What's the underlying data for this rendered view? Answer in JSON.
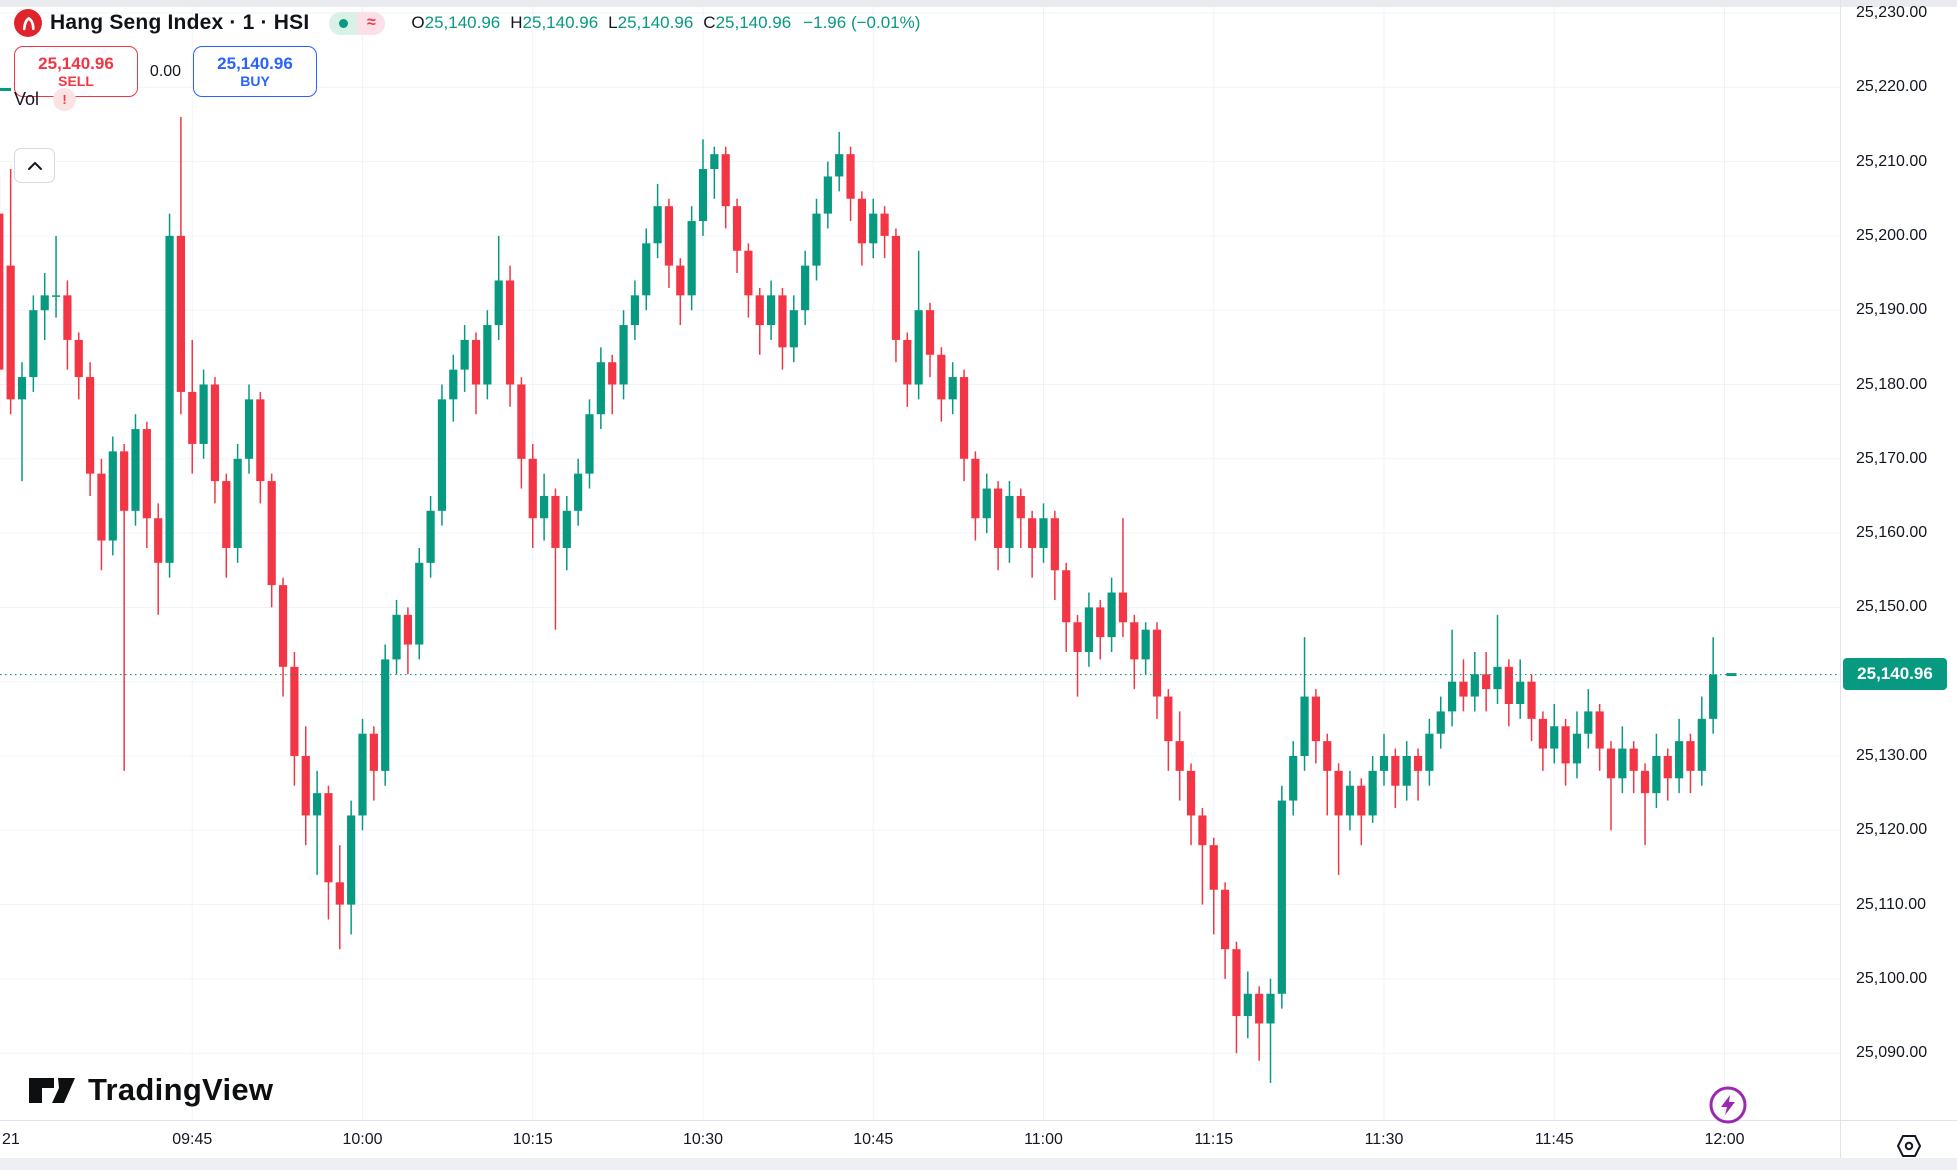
{
  "header": {
    "symbol_title": "Hang Seng Index · 1 · HSI",
    "status_dot_color": "#089981",
    "approx_badge": "≈",
    "ohlc": {
      "o_label": "O",
      "o": "25,140.96",
      "h_label": "H",
      "h": "25,140.96",
      "l_label": "L",
      "l": "25,140.96",
      "c_label": "C",
      "c": "25,140.96",
      "change": "−1.96 (−0.01%)"
    }
  },
  "trade_panel": {
    "sell_price": "25,140.96",
    "sell_label": "SELL",
    "spread": "0.00",
    "buy_price": "25,140.96",
    "buy_label": "BUY"
  },
  "volume_pane": {
    "label": "Vol",
    "warning": "!"
  },
  "footer": {
    "brand": "TradingView"
  },
  "chart_data": {
    "type": "candlestick",
    "symbol": "HSI",
    "title": "Hang Seng Index",
    "interval": "1",
    "session_start": "09:30",
    "interval_minutes": 1,
    "first_candle_minute": -2,
    "colors": {
      "up": "#089981",
      "down": "#f23645",
      "grid": "#f0f3fa",
      "last_line": "#089981"
    },
    "last_price": {
      "value": 25140.96,
      "label": "25,140.96"
    },
    "price_axis": {
      "min_visible": 25085,
      "max_visible": 25232,
      "ticks": [
        {
          "value": 25230,
          "label": "25,230.00"
        },
        {
          "value": 25220,
          "label": "25,220.00"
        },
        {
          "value": 25210,
          "label": "25,210.00"
        },
        {
          "value": 25200,
          "label": "25,200.00"
        },
        {
          "value": 25190,
          "label": "25,190.00"
        },
        {
          "value": 25180,
          "label": "25,180.00"
        },
        {
          "value": 25170,
          "label": "25,170.00"
        },
        {
          "value": 25160,
          "label": "25,160.00"
        },
        {
          "value": 25150,
          "label": "25,150.00"
        },
        {
          "value": 25140,
          "label": "25,140.00"
        },
        {
          "value": 25130,
          "label": "25,130.00"
        },
        {
          "value": 25120,
          "label": "25,120.00"
        },
        {
          "value": 25110,
          "label": "25,110.00"
        },
        {
          "value": 25100,
          "label": "25,100.00"
        },
        {
          "value": 25090,
          "label": "25,090.00"
        }
      ]
    },
    "time_axis": {
      "ticks": [
        {
          "label": "21",
          "minute": 0,
          "edge": true
        },
        {
          "label": "09:45",
          "minute": 15
        },
        {
          "label": "10:00",
          "minute": 30
        },
        {
          "label": "10:15",
          "minute": 45
        },
        {
          "label": "10:30",
          "minute": 60
        },
        {
          "label": "10:45",
          "minute": 75
        },
        {
          "label": "11:00",
          "minute": 90
        },
        {
          "label": "11:15",
          "minute": 105
        },
        {
          "label": "11:30",
          "minute": 120
        },
        {
          "label": "11:45",
          "minute": 135
        },
        {
          "label": "12:00",
          "minute": 150
        }
      ]
    },
    "candles": [
      [
        25203,
        25208,
        25177,
        25182
      ],
      [
        25196,
        25209,
        25176,
        25178
      ],
      [
        25178,
        25183,
        25167,
        25181
      ],
      [
        25181,
        25192,
        25179,
        25190
      ],
      [
        25190,
        25195,
        25186,
        25192
      ],
      [
        25192,
        25200,
        25189,
        25192
      ],
      [
        25192,
        25194,
        25182,
        25186
      ],
      [
        25186,
        25187,
        25178,
        25181
      ],
      [
        25181,
        25183,
        25165,
        25168
      ],
      [
        25168,
        25170,
        25155,
        25159
      ],
      [
        25159,
        25173,
        25157,
        25171
      ],
      [
        25171,
        25172,
        25128,
        25163
      ],
      [
        25163,
        25176,
        25161,
        25174
      ],
      [
        25174,
        25175,
        25158,
        25162
      ],
      [
        25162,
        25164,
        25149,
        25156
      ],
      [
        25156,
        25203,
        25154,
        25200
      ],
      [
        25200,
        25216,
        25176,
        25179
      ],
      [
        25179,
        25186,
        25168,
        25172
      ],
      [
        25172,
        25182,
        25170,
        25180
      ],
      [
        25180,
        25181,
        25164,
        25167
      ],
      [
        25167,
        25168,
        25154,
        25158
      ],
      [
        25158,
        25172,
        25156,
        25170
      ],
      [
        25170,
        25180,
        25168,
        25178
      ],
      [
        25178,
        25179,
        25164,
        25167
      ],
      [
        25167,
        25168,
        25150,
        25153
      ],
      [
        25153,
        25154,
        25138,
        25142
      ],
      [
        25142,
        25144,
        25126,
        25130
      ],
      [
        25130,
        25134,
        25118,
        25122
      ],
      [
        25122,
        25128,
        25114,
        25125
      ],
      [
        25125,
        25126,
        25108,
        25113
      ],
      [
        25113,
        25118,
        25104,
        25110
      ],
      [
        25110,
        25124,
        25106,
        25122
      ],
      [
        25122,
        25135,
        25120,
        25133
      ],
      [
        25133,
        25134,
        25124,
        25128
      ],
      [
        25128,
        25145,
        25126,
        25143
      ],
      [
        25143,
        25151,
        25141,
        25149
      ],
      [
        25149,
        25150,
        25141,
        25145
      ],
      [
        25145,
        25158,
        25143,
        25156
      ],
      [
        25156,
        25165,
        25154,
        25163
      ],
      [
        25163,
        25180,
        25161,
        25178
      ],
      [
        25178,
        25184,
        25175,
        25182
      ],
      [
        25182,
        25188,
        25179,
        25186
      ],
      [
        25186,
        25187,
        25176,
        25180
      ],
      [
        25180,
        25190,
        25178,
        25188
      ],
      [
        25188,
        25200,
        25186,
        25194
      ],
      [
        25194,
        25196,
        25177,
        25180
      ],
      [
        25180,
        25181,
        25166,
        25170
      ],
      [
        25170,
        25172,
        25158,
        25162
      ],
      [
        25162,
        25168,
        25159,
        25165
      ],
      [
        25165,
        25166,
        25147,
        25158
      ],
      [
        25158,
        25165,
        25155,
        25163
      ],
      [
        25163,
        25170,
        25161,
        25168
      ],
      [
        25168,
        25178,
        25166,
        25176
      ],
      [
        25176,
        25185,
        25174,
        25183
      ],
      [
        25183,
        25184,
        25176,
        25180
      ],
      [
        25180,
        25190,
        25178,
        25188
      ],
      [
        25188,
        25194,
        25186,
        25192
      ],
      [
        25192,
        25201,
        25190,
        25199
      ],
      [
        25199,
        25207,
        25197,
        25204
      ],
      [
        25204,
        25205,
        25193,
        25196
      ],
      [
        25196,
        25197,
        25188,
        25192
      ],
      [
        25192,
        25204,
        25190,
        25202
      ],
      [
        25202,
        25213,
        25200,
        25209
      ],
      [
        25209,
        25212,
        25205,
        25211
      ],
      [
        25211,
        25212,
        25201,
        25204
      ],
      [
        25204,
        25205,
        25195,
        25198
      ],
      [
        25198,
        25199,
        25189,
        25192
      ],
      [
        25192,
        25193,
        25184,
        25188
      ],
      [
        25188,
        25194,
        25186,
        25192
      ],
      [
        25192,
        25193,
        25182,
        25185
      ],
      [
        25185,
        25192,
        25183,
        25190
      ],
      [
        25190,
        25198,
        25188,
        25196
      ],
      [
        25196,
        25205,
        25194,
        25203
      ],
      [
        25203,
        25210,
        25201,
        25208
      ],
      [
        25208,
        25214,
        25206,
        25211
      ],
      [
        25211,
        25212,
        25202,
        25205
      ],
      [
        25205,
        25206,
        25196,
        25199
      ],
      [
        25199,
        25205,
        25197,
        25203
      ],
      [
        25203,
        25204,
        25197,
        25200
      ],
      [
        25200,
        25201,
        25183,
        25186
      ],
      [
        25186,
        25187,
        25177,
        25180
      ],
      [
        25180,
        25198,
        25178,
        25190
      ],
      [
        25190,
        25191,
        25181,
        25184
      ],
      [
        25184,
        25185,
        25175,
        25178
      ],
      [
        25178,
        25183,
        25176,
        25181
      ],
      [
        25181,
        25182,
        25167,
        25170
      ],
      [
        25170,
        25171,
        25159,
        25162
      ],
      [
        25162,
        25168,
        25160,
        25166
      ],
      [
        25166,
        25167,
        25155,
        25158
      ],
      [
        25158,
        25167,
        25156,
        25165
      ],
      [
        25165,
        25166,
        25158,
        25162
      ],
      [
        25162,
        25163,
        25154,
        25158
      ],
      [
        25158,
        25164,
        25156,
        25162
      ],
      [
        25162,
        25163,
        25151,
        25155
      ],
      [
        25155,
        25156,
        25144,
        25148
      ],
      [
        25148,
        25149,
        25138,
        25144
      ],
      [
        25144,
        25152,
        25142,
        25150
      ],
      [
        25150,
        25151,
        25143,
        25146
      ],
      [
        25146,
        25154,
        25144,
        25152
      ],
      [
        25152,
        25162,
        25146,
        25148
      ],
      [
        25148,
        25149,
        25139,
        25143
      ],
      [
        25143,
        25148,
        25141,
        25147
      ],
      [
        25147,
        25148,
        25135,
        25138
      ],
      [
        25138,
        25139,
        25128,
        25132
      ],
      [
        25132,
        25136,
        25124,
        25128
      ],
      [
        25128,
        25129,
        25118,
        25122
      ],
      [
        25122,
        25123,
        25110,
        25118
      ],
      [
        25118,
        25119,
        25106,
        25112
      ],
      [
        25112,
        25113,
        25100,
        25104
      ],
      [
        25104,
        25105,
        25090,
        25095
      ],
      [
        25095,
        25101,
        25092,
        25098
      ],
      [
        25098,
        25099,
        25089,
        25094
      ],
      [
        25094,
        25100,
        25086,
        25098
      ],
      [
        25098,
        25126,
        25096,
        25124
      ],
      [
        25124,
        25132,
        25122,
        25130
      ],
      [
        25130,
        25146,
        25128,
        25138
      ],
      [
        25138,
        25139,
        25129,
        25132
      ],
      [
        25132,
        25133,
        25122,
        25128
      ],
      [
        25128,
        25129,
        25114,
        25122
      ],
      [
        25122,
        25128,
        25120,
        25126
      ],
      [
        25126,
        25127,
        25118,
        25122
      ],
      [
        25122,
        25130,
        25121,
        25128
      ],
      [
        25128,
        25133,
        25126,
        25130
      ],
      [
        25130,
        25131,
        25123,
        25126
      ],
      [
        25126,
        25132,
        25124,
        25130
      ],
      [
        25130,
        25131,
        25124,
        25128
      ],
      [
        25128,
        25135,
        25126,
        25133
      ],
      [
        25133,
        25138,
        25131,
        25136
      ],
      [
        25136,
        25147,
        25134,
        25140
      ],
      [
        25140,
        25143,
        25136,
        25138
      ],
      [
        25138,
        25144,
        25136,
        25141
      ],
      [
        25141,
        25144,
        25136,
        25139
      ],
      [
        25139,
        25149,
        25137,
        25142
      ],
      [
        25142,
        25143,
        25134,
        25137
      ],
      [
        25137,
        25143,
        25135,
        25140
      ],
      [
        25140,
        25141,
        25132,
        25135
      ],
      [
        25135,
        25136,
        25128,
        25131
      ],
      [
        25131,
        25137,
        25129,
        25134
      ],
      [
        25134,
        25135,
        25126,
        25129
      ],
      [
        25129,
        25136,
        25127,
        25133
      ],
      [
        25133,
        25139,
        25131,
        25136
      ],
      [
        25136,
        25137,
        25128,
        25131
      ],
      [
        25131,
        25132,
        25120,
        25127
      ],
      [
        25127,
        25134,
        25125,
        25131
      ],
      [
        25131,
        25132,
        25125,
        25128
      ],
      [
        25128,
        25129,
        25118,
        25125
      ],
      [
        25125,
        25133,
        25123,
        25130
      ],
      [
        25130,
        25131,
        25124,
        25127
      ],
      [
        25127,
        25135,
        25125,
        25132
      ],
      [
        25132,
        25133,
        25125,
        25128
      ],
      [
        25128,
        25138,
        25126,
        25135
      ],
      [
        25135,
        25146,
        25133,
        25140.96
      ]
    ]
  }
}
